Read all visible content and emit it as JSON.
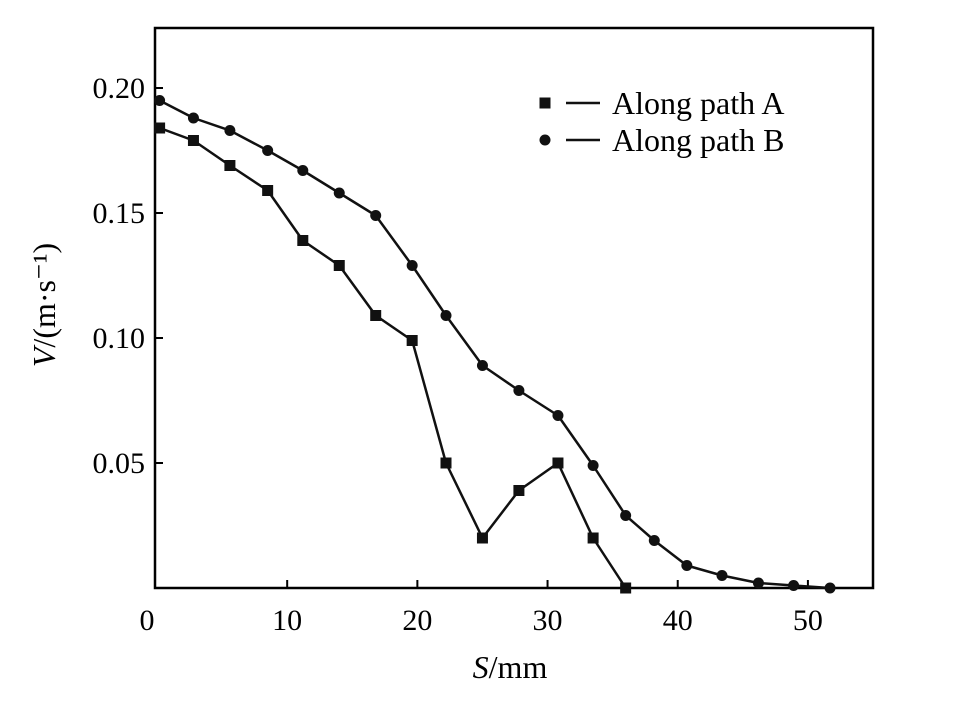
{
  "chart_data": {
    "type": "line",
    "xlabel": "S/mm",
    "ylabel": "V/(m·s⁻¹)",
    "xlim": [
      0,
      55
    ],
    "ylim": [
      0,
      0.224
    ],
    "x_ticks": [
      "0",
      "10",
      "20",
      "30",
      "40",
      "50"
    ],
    "x_tick_values": [
      0,
      10,
      20,
      30,
      40,
      50
    ],
    "y_ticks": [
      "0.05",
      "0.10",
      "0.15",
      "0.20"
    ],
    "y_tick_values": [
      0.05,
      0.1,
      0.15,
      0.2
    ],
    "grid": false,
    "legend_position": "top-right",
    "series": [
      {
        "name": "Along path A",
        "marker": "square",
        "color": "#111111",
        "points": [
          [
            0.2,
            0.184
          ],
          [
            2.8,
            0.179
          ],
          [
            5.6,
            0.169
          ],
          [
            8.5,
            0.159
          ],
          [
            11.2,
            0.139
          ],
          [
            14.0,
            0.129
          ],
          [
            16.8,
            0.109
          ],
          [
            19.6,
            0.099
          ],
          [
            22.2,
            0.05
          ],
          [
            25.0,
            0.02
          ],
          [
            27.8,
            0.039
          ],
          [
            30.8,
            0.05
          ],
          [
            33.5,
            0.02
          ],
          [
            36.0,
            0.0
          ]
        ]
      },
      {
        "name": "Along path B",
        "marker": "circle",
        "color": "#111111",
        "points": [
          [
            0.2,
            0.195
          ],
          [
            2.8,
            0.188
          ],
          [
            5.6,
            0.183
          ],
          [
            8.5,
            0.175
          ],
          [
            11.2,
            0.167
          ],
          [
            14.0,
            0.158
          ],
          [
            16.8,
            0.149
          ],
          [
            19.6,
            0.129
          ],
          [
            22.2,
            0.109
          ],
          [
            25.0,
            0.089
          ],
          [
            27.8,
            0.079
          ],
          [
            30.8,
            0.069
          ],
          [
            33.5,
            0.049
          ],
          [
            36.0,
            0.029
          ],
          [
            38.2,
            0.019
          ],
          [
            40.7,
            0.009
          ],
          [
            43.4,
            0.005
          ],
          [
            46.2,
            0.002
          ],
          [
            48.9,
            0.001
          ],
          [
            51.7,
            0.0
          ]
        ]
      }
    ]
  }
}
